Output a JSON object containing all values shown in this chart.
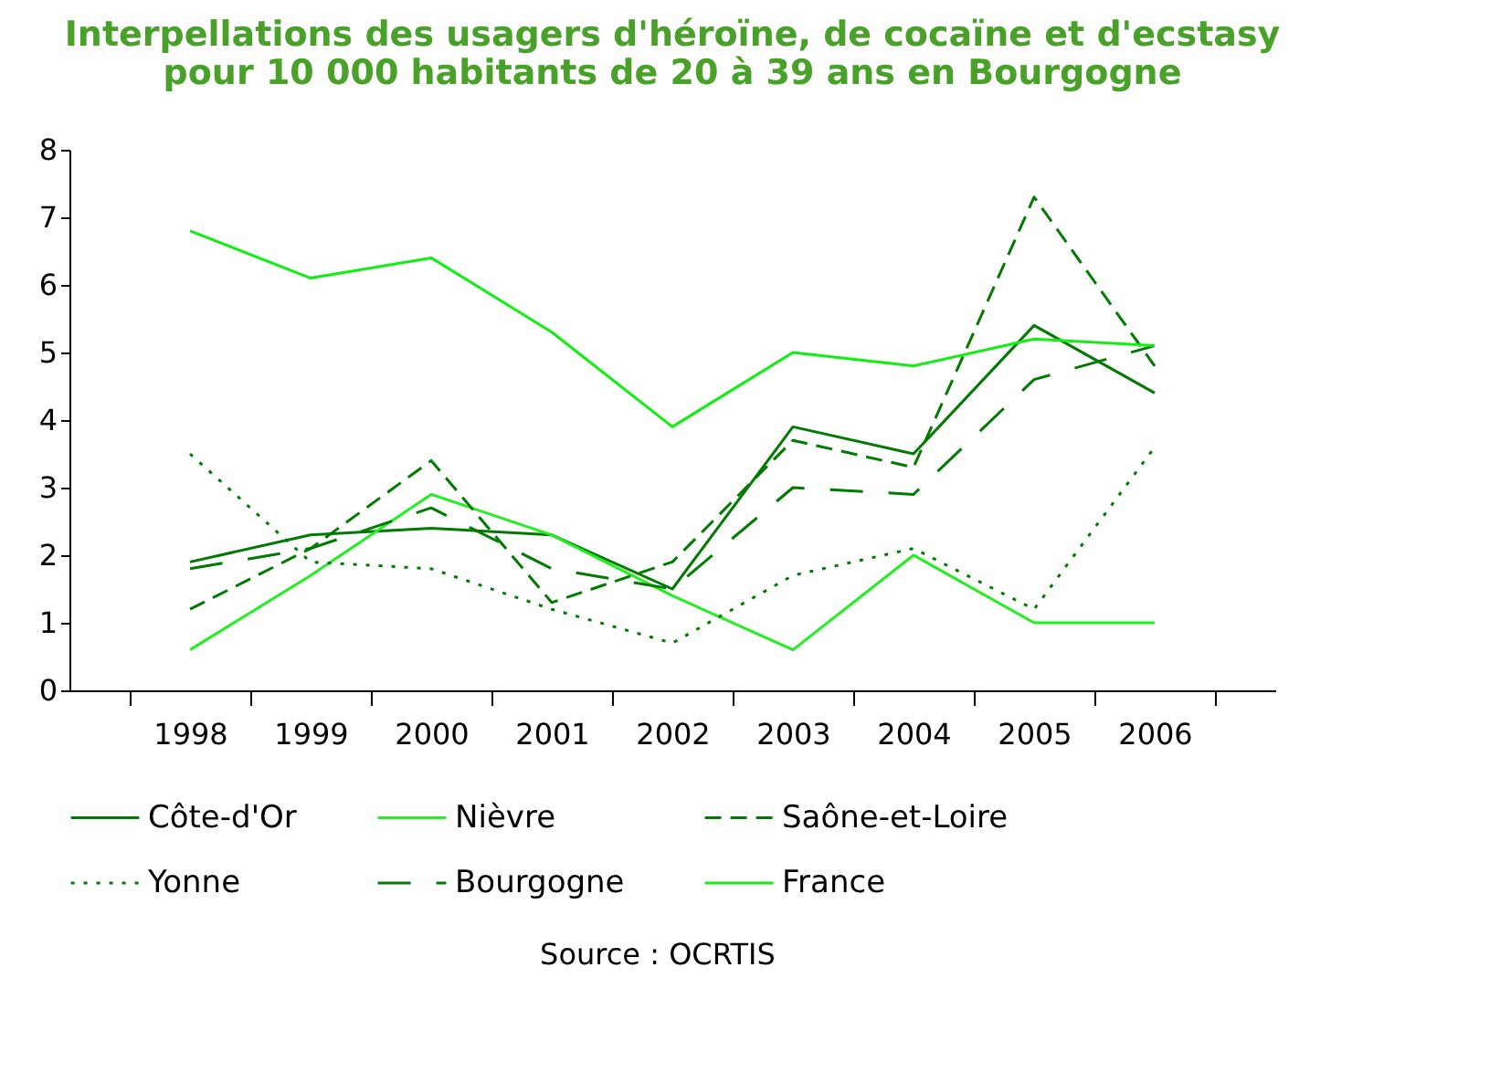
{
  "chart_data": {
    "type": "line",
    "title": "Interpellations des usagers d'héroïne, de cocaïne et d'ecstasy\npour 10 000 habitants de 20 à 39 ans en Bourgogne",
    "categories": [
      "1998",
      "1999",
      "2000",
      "2001",
      "2002",
      "2003",
      "2004",
      "2005",
      "2006"
    ],
    "series": [
      {
        "name": "Côte-d'Or",
        "color": "#007a00",
        "line_style": "solid",
        "values": [
          1.9,
          2.3,
          2.4,
          2.3,
          1.5,
          3.9,
          3.5,
          5.4,
          4.4
        ]
      },
      {
        "name": "Nièvre",
        "color": "#22ee22",
        "line_style": "solid",
        "values": [
          0.6,
          1.7,
          2.9,
          2.3,
          1.4,
          0.6,
          2.0,
          1.0,
          1.0
        ]
      },
      {
        "name": "Saône-et-Loire",
        "color": "#007a00",
        "line_style": "dashed",
        "values": [
          1.2,
          2.1,
          3.4,
          1.3,
          1.9,
          3.7,
          3.3,
          7.3,
          4.8
        ]
      },
      {
        "name": "Yonne",
        "color": "#007a00",
        "line_style": "dotted",
        "values": [
          3.5,
          1.9,
          1.8,
          1.2,
          0.7,
          1.7,
          2.1,
          1.2,
          3.6
        ]
      },
      {
        "name": "Bourgogne",
        "color": "#007a00",
        "line_style": "dashed",
        "values": [
          1.8,
          2.1,
          2.7,
          1.8,
          1.5,
          3.0,
          2.9,
          4.6,
          5.1
        ]
      },
      {
        "name": "France",
        "color": "#11ee11",
        "line_style": "solid",
        "values": [
          6.8,
          6.1,
          6.4,
          5.3,
          3.9,
          5.0,
          4.8,
          5.2,
          5.1
        ]
      }
    ],
    "ylim": [
      0,
      8
    ],
    "yticks": [
      0,
      1,
      2,
      3,
      4,
      5,
      6,
      7,
      8
    ],
    "grid": false,
    "legend": "bottom",
    "marker": "none",
    "annotations": [
      "Source : OCRTIS"
    ]
  }
}
